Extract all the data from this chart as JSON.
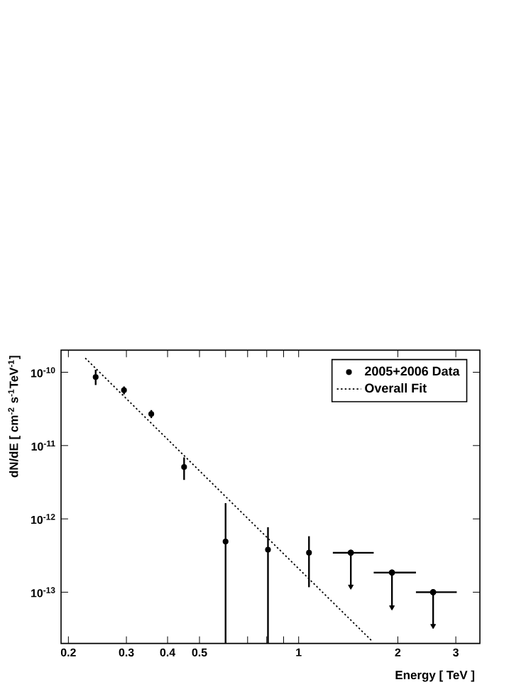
{
  "chart_data": {
    "type": "scatter",
    "xlabel": "Energy [ TeV ]",
    "ylabel": "dN/dE  [ cm$^{-2}$ s$^{-1}$TeV$^{-1}$]",
    "log": "xy",
    "xlim": [
      0.19,
      3.55
    ],
    "ylim": [
      2e-14,
      2e-10
    ],
    "xticks": [
      0.2,
      0.3,
      0.4,
      0.5,
      {
        "value": 0.6,
        "label": null
      },
      {
        "value": 0.7,
        "label": null
      },
      {
        "value": 0.8,
        "label": null
      },
      {
        "value": 0.9,
        "label": null
      },
      1,
      2,
      3
    ],
    "yticks": [
      {
        "value": 1e-13,
        "label": "10$^{-13}$"
      },
      {
        "value": 1e-12,
        "label": "10$^{-12}$"
      },
      {
        "value": 1e-11,
        "label": "10$^{-11}$"
      },
      {
        "value": 1e-10,
        "label": "10$^{-10}$"
      }
    ],
    "legend": "top right",
    "series": [
      {
        "name": "2005+2006 Data",
        "marker": "circle",
        "color": "#000000",
        "x": [
          0.242,
          0.295,
          0.357,
          0.449,
          0.6,
          0.807,
          1.075
        ],
        "values": [
          8.6e-11,
          5.7e-11,
          2.7e-11,
          5.1e-12,
          4.9e-13,
          3.8e-13,
          3.45e-13
        ],
        "errors": [
          [
            6.7e-11,
            1.08e-10
          ],
          [
            5e-11,
            6.4e-11
          ],
          [
            2.37e-11,
            3.05e-11
          ],
          [
            3.4e-12,
            6.9e-12
          ],
          [
            2e-14,
            1.64e-12
          ],
          [
            2e-14,
            7.7e-13
          ],
          [
            1.17e-13,
            5.8e-13
          ]
        ]
      },
      {
        "marker": "circle",
        "color": "#000000",
        "x": [
          1.44,
          1.92,
          2.56
        ],
        "values": [
          3.45e-13,
          1.85e-13,
          1e-13
        ],
        "errors": [
          [
            1.17e-13,
            3.45e-13
          ],
          [
            6.1e-14,
            1.85e-13
          ],
          [
            3.4e-14,
            1e-13
          ]
        ],
        "xerrors": [
          [
            1.27,
            1.69
          ],
          [
            1.69,
            2.27
          ],
          [
            2.27,
            3.02
          ]
        ]
      },
      {
        "name": "Overall Fit",
        "type": "line",
        "color": "#000000",
        "line_style": "dotted",
        "marker": "none",
        "x": [
          0.225,
          1.68
        ],
        "values": [
          1.56e-10,
          2.1e-14
        ]
      }
    ]
  }
}
